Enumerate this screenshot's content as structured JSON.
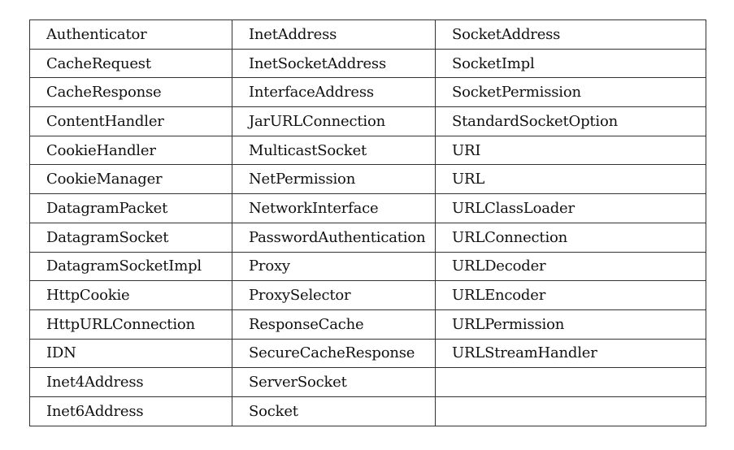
{
  "table": {
    "rows": [
      [
        "Authenticator",
        "InetAddress",
        "SocketAddress"
      ],
      [
        "CacheRequest",
        "InetSocketAddress",
        "SocketImpl"
      ],
      [
        "CacheResponse",
        "InterfaceAddress",
        "SocketPermission"
      ],
      [
        "ContentHandler",
        "JarURLConnection",
        "StandardSocketOption"
      ],
      [
        "CookieHandler",
        "MulticastSocket",
        "URI"
      ],
      [
        "CookieManager",
        "NetPermission",
        "URL"
      ],
      [
        "DatagramPacket",
        "NetworkInterface",
        "URLClassLoader"
      ],
      [
        "DatagramSocket",
        "PasswordAuthentication",
        "URLConnection"
      ],
      [
        "DatagramSocketImpl",
        "Proxy",
        "URLDecoder"
      ],
      [
        "HttpCookie",
        "ProxySelector",
        "URLEncoder"
      ],
      [
        "HttpURLConnection",
        "ResponseCache",
        "URLPermission"
      ],
      [
        "IDN",
        "SecureCacheResponse",
        "URLStreamHandler"
      ],
      [
        "Inet4Address",
        "ServerSocket",
        ""
      ],
      [
        "Inet6Address",
        "Socket",
        ""
      ]
    ]
  }
}
